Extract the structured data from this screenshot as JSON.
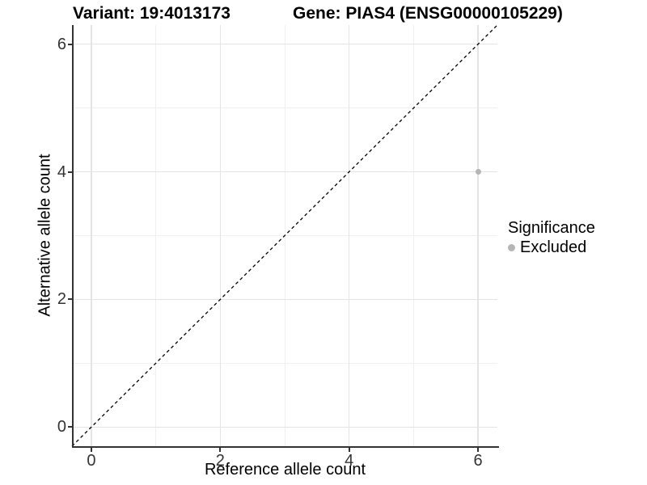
{
  "chart_data": {
    "type": "scatter",
    "title_left": "Variant: 19:4013173",
    "title_right": "Gene: PIAS4 (ENSG00000105229)",
    "xlabel": "Reference allele count",
    "ylabel": "Alternative allele count",
    "xlim": [
      -0.3,
      6.3
    ],
    "ylim": [
      -0.3,
      6.3
    ],
    "x_ticks": [
      0,
      2,
      4,
      6
    ],
    "y_ticks": [
      0,
      2,
      4,
      6
    ],
    "x_minor_ticks": [
      1,
      3,
      5
    ],
    "y_minor_ticks": [
      1,
      3,
      5
    ],
    "grid": "major+minor",
    "series": [
      {
        "name": "Excluded",
        "color": "#b5b5b5",
        "points": [
          {
            "x": 6,
            "y": 4
          }
        ]
      }
    ],
    "reference_line": {
      "kind": "identity",
      "from": [
        -0.3,
        -0.3
      ],
      "to": [
        6.3,
        6.3
      ],
      "style": "dashed",
      "color": "#000000"
    },
    "legend": {
      "title": "Significance",
      "position": "right",
      "items": [
        {
          "label": "Excluded",
          "color": "#b5b5b5",
          "marker": "circle"
        }
      ]
    }
  },
  "colors": {
    "background": "#ffffff",
    "title_text": "#000000",
    "tick_text": "#333333",
    "axis_line": "#333333",
    "grid_major": "#e4e4e4",
    "grid_minor": "#f0f0f0",
    "dashed_line": "#000000",
    "point_excluded": "#b5b5b5"
  }
}
